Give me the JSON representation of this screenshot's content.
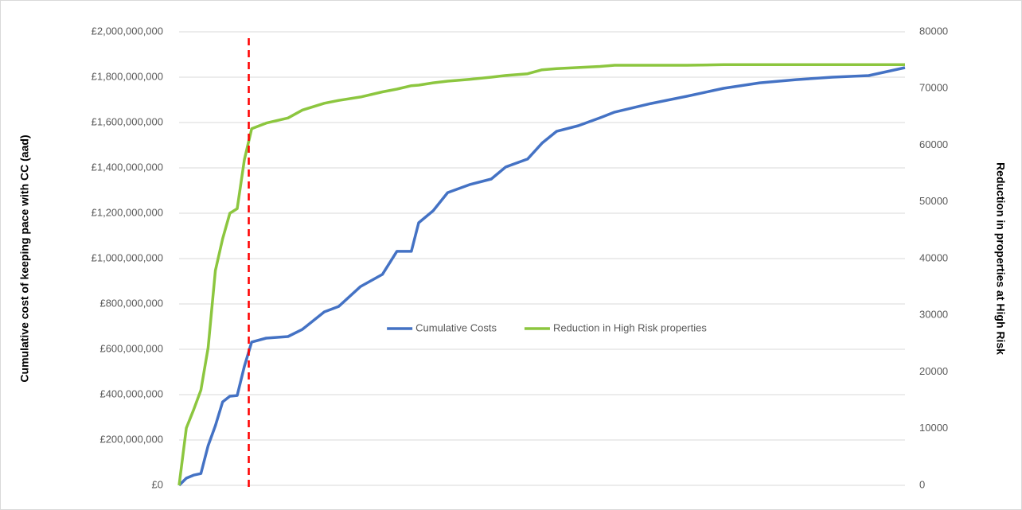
{
  "chart_data": {
    "type": "line",
    "y_axis_label": "Cumulative cost of keeping pace with CC (aad)",
    "y2_axis_label": "Reduction in properties at High Risk",
    "x": [
      0,
      1,
      2,
      3,
      4,
      5,
      6,
      7,
      8,
      9,
      10,
      12,
      15,
      17,
      20,
      22,
      25,
      28,
      30,
      32,
      33,
      35,
      37,
      40,
      43,
      45,
      48,
      50,
      52,
      55,
      58,
      60,
      65,
      70,
      75,
      80,
      85,
      90,
      95,
      100
    ],
    "xlim": [
      0,
      100
    ],
    "series": [
      {
        "name": "Cumulative Costs",
        "color": "#4472c4",
        "axis": "y",
        "values": [
          0,
          31600000,
          45000000,
          52000000,
          175000000,
          263000000,
          368000000,
          393000000,
          396000000,
          526000000,
          632000000,
          649000000,
          656000000,
          688000000,
          765000000,
          789000000,
          877000000,
          930000000,
          1032000000,
          1032000000,
          1158000000,
          1211000000,
          1291000000,
          1326000000,
          1351000000,
          1404000000,
          1439000000,
          1509000000,
          1561000000,
          1586000000,
          1621000000,
          1646000000,
          1684000000,
          1716000000,
          1751000000,
          1775000000,
          1789000000,
          1800000000,
          1807000000,
          1842000000
        ]
      },
      {
        "name": "Reduction in High Risk properties",
        "color": "#8cc63f",
        "axis": "y2",
        "values": [
          0,
          10100,
          13300,
          16800,
          24300,
          37900,
          43500,
          48000,
          48800,
          57500,
          62900,
          63900,
          64800,
          66200,
          67400,
          67900,
          68500,
          69400,
          69900,
          70500,
          70600,
          71000,
          71300,
          71600,
          72000,
          72300,
          72600,
          73300,
          73500,
          73700,
          73900,
          74100,
          74100,
          74100,
          74200,
          74200,
          74200,
          74200,
          74200,
          74200
        ]
      }
    ],
    "ylim": [
      0,
      2000000000
    ],
    "yticks": [
      {
        "value": 0,
        "label": "£0"
      },
      {
        "value": 200000000,
        "label": "£200,000,000"
      },
      {
        "value": 400000000,
        "label": "£400,000,000"
      },
      {
        "value": 600000000,
        "label": "£600,000,000"
      },
      {
        "value": 800000000,
        "label": "£800,000,000"
      },
      {
        "value": 1000000000,
        "label": "£1,000,000,000"
      },
      {
        "value": 1200000000,
        "label": "£1,200,000,000"
      },
      {
        "value": 1400000000,
        "label": "£1,400,000,000"
      },
      {
        "value": 1600000000,
        "label": "£1,600,000,000"
      },
      {
        "value": 1800000000,
        "label": "£1,800,000,000"
      },
      {
        "value": 2000000000,
        "label": "£2,000,000,000"
      }
    ],
    "y2lim": [
      0,
      80000
    ],
    "y2ticks": [
      0,
      10000,
      20000,
      30000,
      40000,
      50000,
      60000,
      70000,
      80000
    ],
    "reference_line": {
      "x": 9.6,
      "color": "#ff0000"
    },
    "grid": true,
    "legend_position": "center"
  }
}
